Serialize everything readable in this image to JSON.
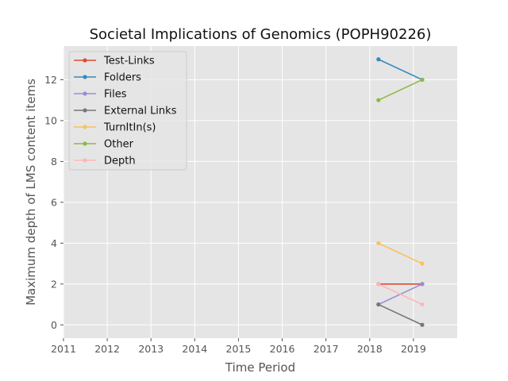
{
  "chart_data": {
    "type": "line",
    "title": "Societal Implications of Genomics (POPH90226)",
    "xlabel": "Time Period",
    "ylabel": "Maximum depth of LMS content items",
    "xlim": [
      2011,
      2020
    ],
    "ylim": [
      -0.65,
      13.65
    ],
    "xticks": [
      2011,
      2012,
      2013,
      2014,
      2015,
      2016,
      2017,
      2018,
      2019
    ],
    "yticks": [
      0,
      2,
      4,
      6,
      8,
      10,
      12
    ],
    "x": [
      2018.2,
      2019.2
    ],
    "grid": true,
    "legend_position": "top-left",
    "series": [
      {
        "name": "Test-Links",
        "color": "#E24A33",
        "values": [
          2,
          2
        ]
      },
      {
        "name": "Folders",
        "color": "#348ABD",
        "values": [
          13,
          12
        ]
      },
      {
        "name": "Files",
        "color": "#988ED5",
        "values": [
          1,
          2
        ]
      },
      {
        "name": "External Links",
        "color": "#777777",
        "values": [
          1,
          0
        ]
      },
      {
        "name": "TurnItIn(s)",
        "color": "#FBC15E",
        "values": [
          4,
          3
        ]
      },
      {
        "name": "Other",
        "color": "#8EBA42",
        "values": [
          11,
          12
        ]
      },
      {
        "name": "Depth",
        "color": "#FFB5B8",
        "values": [
          2,
          1
        ]
      }
    ]
  }
}
